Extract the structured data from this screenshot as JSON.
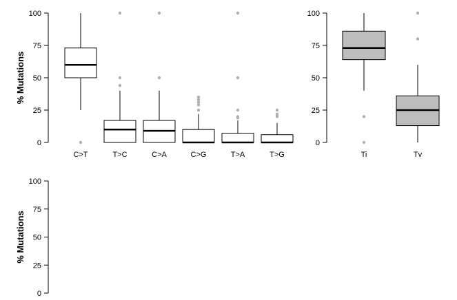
{
  "chart_data": [
    {
      "type": "box",
      "id": "substitutions",
      "ylabel": "% Mutations",
      "ylim": [
        0,
        100
      ],
      "yticks": [
        0,
        25,
        50,
        75,
        100
      ],
      "fill": "#ffffff",
      "categories": [
        "C>T",
        "T>C",
        "C>A",
        "C>G",
        "T>A",
        "T>G"
      ],
      "boxes": [
        {
          "label": "C>T",
          "whisker_low": 25,
          "q1": 50,
          "median": 60,
          "q3": 73,
          "whisker_high": 100,
          "outliers": [
            0
          ]
        },
        {
          "label": "T>C",
          "whisker_low": 0,
          "q1": 0,
          "median": 10,
          "q3": 17,
          "whisker_high": 40,
          "outliers": [
            44,
            50,
            100
          ]
        },
        {
          "label": "C>A",
          "whisker_low": 0,
          "q1": 0,
          "median": 9,
          "q3": 17,
          "whisker_high": 40,
          "outliers": [
            50,
            100
          ]
        },
        {
          "label": "C>G",
          "whisker_low": 0,
          "q1": 0,
          "median": 0,
          "q3": 10,
          "whisker_high": 22,
          "outliers": [
            25,
            29,
            31,
            33,
            35
          ]
        },
        {
          "label": "T>A",
          "whisker_low": 0,
          "q1": 0,
          "median": 0,
          "q3": 7,
          "whisker_high": 17,
          "outliers": [
            19,
            20,
            25,
            50,
            100
          ]
        },
        {
          "label": "T>G",
          "whisker_low": 0,
          "q1": 0,
          "median": 0,
          "q3": 6,
          "whisker_high": 15,
          "outliers": [
            20,
            21,
            22,
            25
          ]
        }
      ]
    },
    {
      "type": "box",
      "id": "ti-tv",
      "ylabel": "",
      "ylim": [
        0,
        100
      ],
      "yticks": [
        0,
        25,
        50,
        75,
        100
      ],
      "fill": "#bebebe",
      "categories": [
        "Ti",
        "Tv"
      ],
      "boxes": [
        {
          "label": "Ti",
          "whisker_low": 40,
          "q1": 64,
          "median": 73,
          "q3": 86,
          "whisker_high": 100,
          "outliers": [
            0,
            20
          ]
        },
        {
          "label": "Tv",
          "whisker_low": 0,
          "q1": 13,
          "median": 25,
          "q3": 36,
          "whisker_high": 60,
          "outliers": [
            80,
            100
          ]
        }
      ]
    },
    {
      "type": "box",
      "id": "empty",
      "ylabel": "% Mutations",
      "ylim": [
        0,
        100
      ],
      "yticks": [
        0,
        25,
        50,
        75,
        100
      ],
      "fill": "#ffffff",
      "categories": [],
      "boxes": []
    }
  ]
}
